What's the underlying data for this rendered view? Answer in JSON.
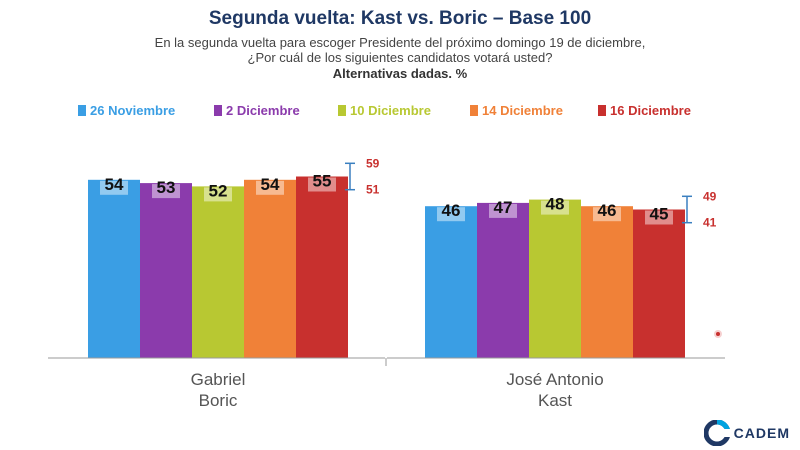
{
  "header": {
    "title": "Segunda vuelta: Kast vs. Boric – Base 100",
    "subtitle_line1": "En la segunda vuelta para escoger Presidente del próximo domingo 19 de diciembre,",
    "subtitle_line2": "¿Por cuál de los siguientes candidatos votará usted?",
    "subtitle_line3": "Alternativas dadas. %"
  },
  "brand": {
    "logo_text": "CADEM",
    "colors": {
      "primary": "#1f3864",
      "accent": "#00a3e0"
    }
  },
  "chart_data": {
    "type": "bar",
    "categories": [
      "Gabriel\nBoric",
      "José Antonio\nKast"
    ],
    "series": [
      {
        "name": "26 Noviembre",
        "color": "#3a9ee4",
        "values": [
          54,
          46
        ]
      },
      {
        "name": "2 Diciembre",
        "color": "#8b3bac",
        "values": [
          53,
          47
        ]
      },
      {
        "name": "10 Diciembre",
        "color": "#b8c832",
        "values": [
          52,
          48
        ]
      },
      {
        "name": "14 Diciembre",
        "color": "#f08138",
        "values": [
          54,
          46
        ]
      },
      {
        "name": "16 Diciembre",
        "color": "#c8302e",
        "values": [
          55,
          45
        ]
      }
    ],
    "ylim": [
      0,
      70
    ],
    "legend_position": "top",
    "grid": false,
    "error_ranges": [
      {
        "category": 0,
        "high": 59,
        "low": 51
      },
      {
        "category": 1,
        "high": 49,
        "low": 41
      }
    ],
    "error_color": "#3a7fc0",
    "error_label_color": "#c8302e"
  }
}
